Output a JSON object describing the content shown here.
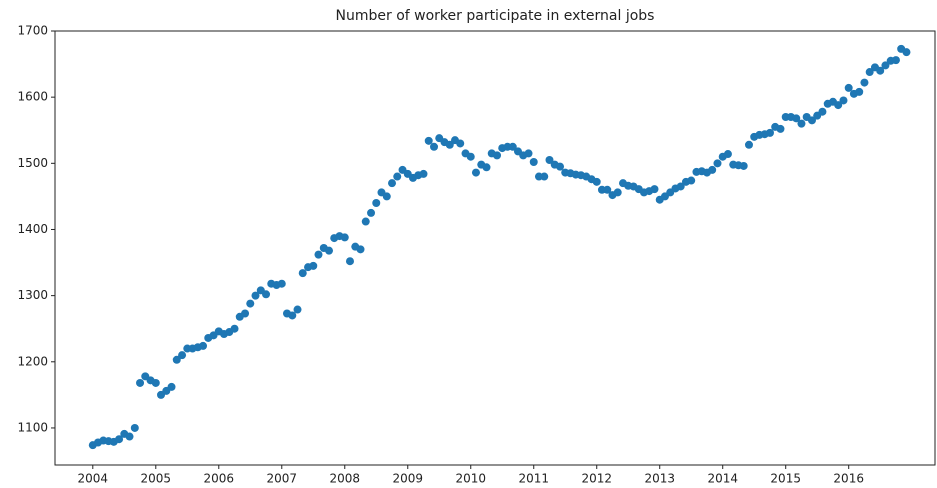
{
  "chart_data": {
    "type": "scatter",
    "title": "Number of worker participate in external jobs",
    "color": "#1f77b4",
    "xlim": [
      2003.4,
      2017.37
    ],
    "ylim": [
      1044,
      1700
    ],
    "xticks": [
      2004,
      2005,
      2006,
      2007,
      2008,
      2009,
      2010,
      2011,
      2012,
      2013,
      2014,
      2015,
      2016
    ],
    "yticks": [
      1100,
      1200,
      1300,
      1400,
      1500,
      1600,
      1700
    ],
    "x": [
      2004,
      2004.083,
      2004.167,
      2004.25,
      2004.333,
      2004.417,
      2004.5,
      2004.583,
      2004.667,
      2004.75,
      2004.833,
      2004.917,
      2005,
      2005.083,
      2005.167,
      2005.25,
      2005.333,
      2005.417,
      2005.5,
      2005.583,
      2005.667,
      2005.75,
      2005.833,
      2005.917,
      2006,
      2006.083,
      2006.167,
      2006.25,
      2006.333,
      2006.417,
      2006.5,
      2006.583,
      2006.667,
      2006.75,
      2006.833,
      2006.917,
      2007,
      2007.083,
      2007.167,
      2007.25,
      2007.333,
      2007.417,
      2007.5,
      2007.583,
      2007.667,
      2007.75,
      2007.833,
      2007.917,
      2008,
      2008.083,
      2008.167,
      2008.25,
      2008.333,
      2008.417,
      2008.5,
      2008.583,
      2008.667,
      2008.75,
      2008.833,
      2008.917,
      2009,
      2009.083,
      2009.167,
      2009.25,
      2009.333,
      2009.417,
      2009.5,
      2009.583,
      2009.667,
      2009.75,
      2009.833,
      2009.917,
      2010,
      2010.083,
      2010.167,
      2010.25,
      2010.333,
      2010.417,
      2010.5,
      2010.583,
      2010.667,
      2010.75,
      2010.833,
      2010.917,
      2011,
      2011.083,
      2011.167,
      2011.25,
      2011.333,
      2011.417,
      2011.5,
      2011.583,
      2011.667,
      2011.75,
      2011.833,
      2011.917,
      2012,
      2012.083,
      2012.167,
      2012.25,
      2012.333,
      2012.417,
      2012.5,
      2012.583,
      2012.667,
      2012.75,
      2012.833,
      2012.917,
      2013,
      2013.083,
      2013.167,
      2013.25,
      2013.333,
      2013.417,
      2013.5,
      2013.583,
      2013.667,
      2013.75,
      2013.833,
      2013.917,
      2014,
      2014.083,
      2014.167,
      2014.25,
      2014.333,
      2014.417,
      2014.5,
      2014.583,
      2014.667,
      2014.75,
      2014.833,
      2014.917,
      2015,
      2015.083,
      2015.167,
      2015.25,
      2015.333,
      2015.417,
      2015.5,
      2015.583,
      2015.667,
      2015.75,
      2015.833,
      2015.917,
      2016,
      2016.083,
      2016.167,
      2016.25,
      2016.333,
      2016.417,
      2016.5,
      2016.583,
      2016.667,
      2016.75,
      2016.833,
      2016.917
    ],
    "values": [
      1074,
      1078,
      1081,
      1080,
      1079,
      1083,
      1091,
      1087,
      1100,
      1168,
      1178,
      1172,
      1168,
      1150,
      1156,
      1162,
      1203,
      1210,
      1220,
      1220,
      1222,
      1224,
      1236,
      1240,
      1246,
      1242,
      1245,
      1250,
      1268,
      1273,
      1288,
      1300,
      1308,
      1302,
      1318,
      1316,
      1318,
      1273,
      1270,
      1279,
      1334,
      1343,
      1345,
      1362,
      1372,
      1368,
      1387,
      1390,
      1388,
      1352,
      1374,
      1370,
      1412,
      1425,
      1440,
      1456,
      1450,
      1470,
      1480,
      1490,
      1484,
      1478,
      1482,
      1484,
      1534,
      1525,
      1538,
      1532,
      1528,
      1535,
      1530,
      1515,
      1510,
      1486,
      1498,
      1494,
      1515,
      1512,
      1523,
      1525,
      1525,
      1518,
      1512,
      1515,
      1502,
      1480,
      1480,
      1505,
      1498,
      1495,
      1486,
      1485,
      1483,
      1482,
      1480,
      1476,
      1472,
      1460,
      1460,
      1452,
      1456,
      1470,
      1466,
      1465,
      1461,
      1456,
      1458,
      1461,
      1445,
      1450,
      1456,
      1462,
      1465,
      1472,
      1474,
      1487,
      1488,
      1486,
      1490,
      1500,
      1510,
      1514,
      1498,
      1497,
      1496,
      1528,
      1540,
      1543,
      1544,
      1546,
      1555,
      1552,
      1570,
      1570,
      1568,
      1560,
      1570,
      1565,
      1572,
      1578,
      1590,
      1593,
      1588,
      1595,
      1614,
      1605,
      1608,
      1622,
      1638,
      1645,
      1640,
      1648,
      1655,
      1656,
      1673,
      1668
    ]
  }
}
